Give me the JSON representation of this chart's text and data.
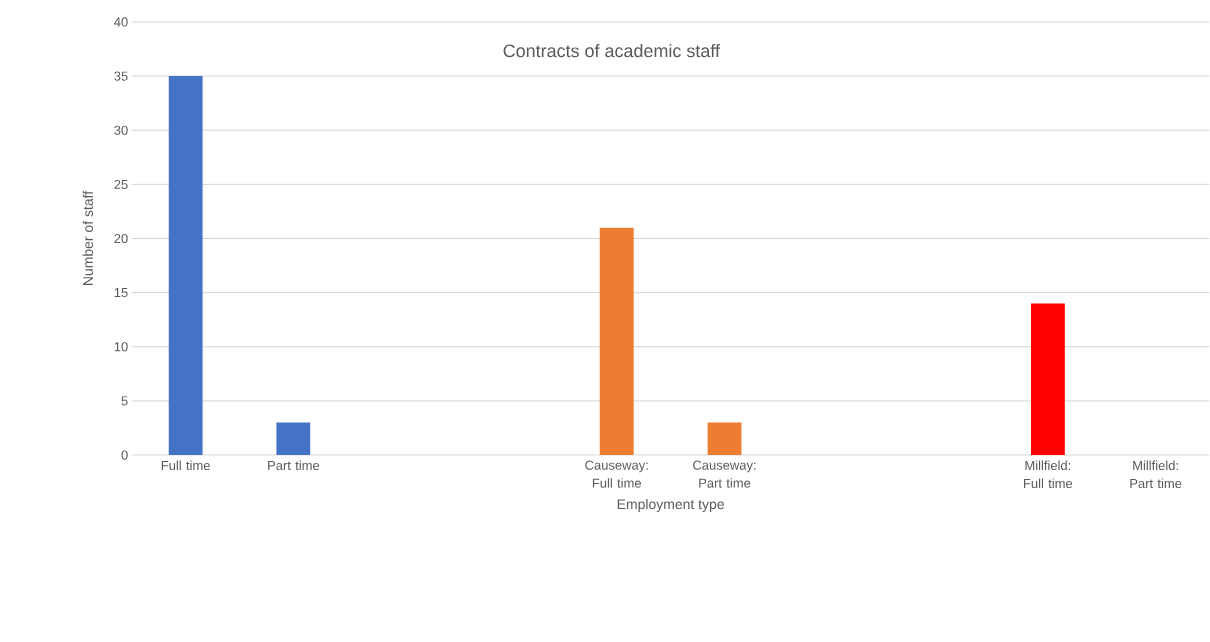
{
  "chart_data": {
    "type": "bar",
    "title": "Contracts of academic staff",
    "xlabel": "Employment type",
    "ylabel": "Number of staff",
    "categories": [
      "Full time",
      "Part time",
      null,
      null,
      "Causeway: Full time",
      "Causeway: Part time",
      null,
      null,
      "Millfield: Full time",
      "Millfield: Part time"
    ],
    "values": [
      35,
      3,
      null,
      null,
      21,
      3,
      null,
      null,
      14,
      0
    ],
    "colors": [
      "#4472c4",
      "#4472c4",
      null,
      null,
      "#ed7d31",
      "#ed7d31",
      null,
      null,
      "#ff0000",
      "#ff0000"
    ],
    "ylim": [
      0,
      40
    ],
    "yticks": [
      0,
      5,
      10,
      15,
      20,
      25,
      30,
      35,
      40
    ],
    "grid": "y"
  }
}
